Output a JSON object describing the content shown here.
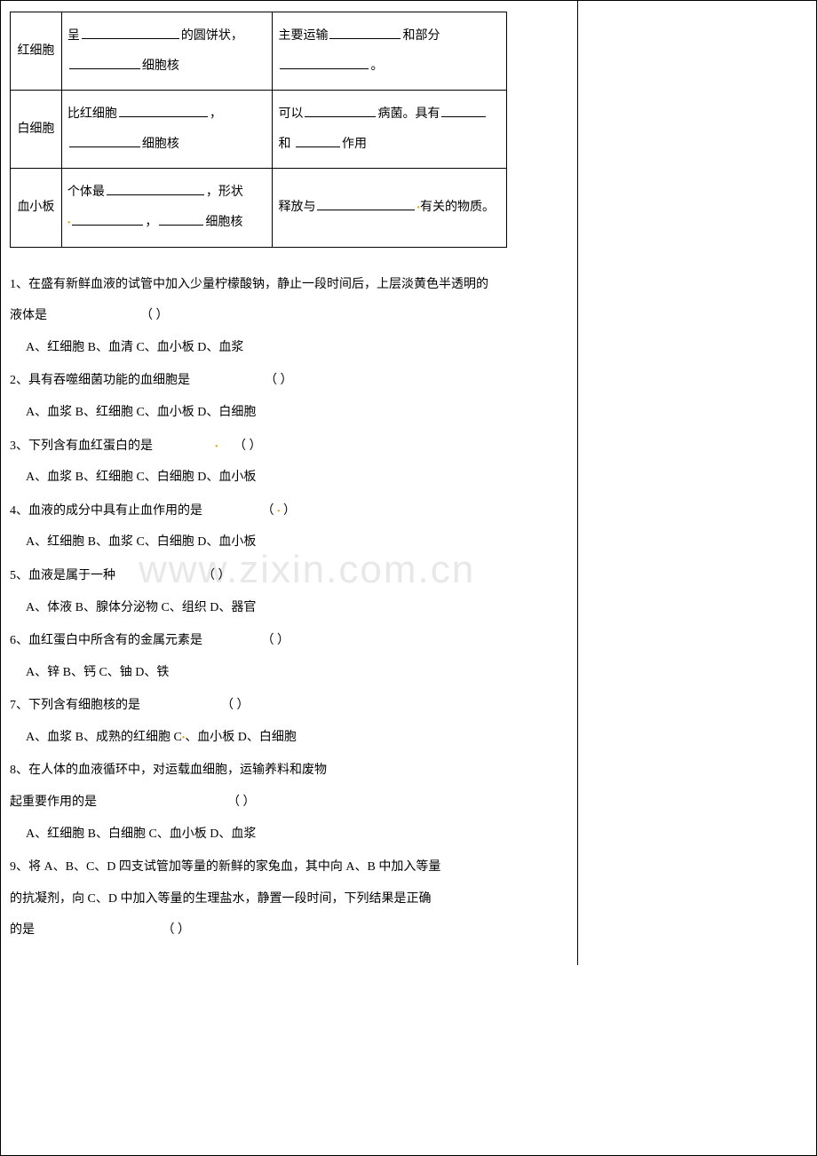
{
  "watermark": "www.zixin.com.cn",
  "table": {
    "rows": [
      {
        "label": "红细胞",
        "col2_parts": [
          "呈",
          "的圆饼状，",
          "细胞核"
        ],
        "col3_parts": [
          "主要运输",
          "和部分",
          "。"
        ]
      },
      {
        "label": "白细胞",
        "col2_parts": [
          "比红细胞",
          "，",
          "细胞核"
        ],
        "col3_parts": [
          "可以",
          "病菌。具有",
          "和 ",
          "作用"
        ]
      },
      {
        "label": "血小板",
        "col2_parts": [
          "个体最",
          "，形状",
          "，",
          "细胞核"
        ],
        "col3_parts": [
          "释放与",
          "有关的物质。"
        ]
      }
    ]
  },
  "questions": [
    {
      "num": "1",
      "stem1": "、在盛有新鲜血液的试管中加入少量柠檬酸钠，静止一段时间后，上层淡黄色半透明的",
      "stem2": "液体是",
      "paren_pad": "                              ",
      "opts": "A、红细胞    B、血清    C、血小板    D、血浆"
    },
    {
      "num": "2",
      "stem1": "、具有吞噬细菌功能的血细胞是",
      "paren_pad": "                        ",
      "opts": "A、血浆    B、红细胞    C、血小板    D、白细胞"
    },
    {
      "num": "3",
      "stem1": "、下列含有血红蛋白的是",
      "paren_pad": "                      ",
      "opts": "A、血浆    B、红细胞    C、白细胞    D、血小板"
    },
    {
      "num": "4",
      "stem1": "、血液的成分中具有止血作用的是",
      "paren_pad": "                   ",
      "opts": "A、红细胞    B、血浆    C、白细胞    D、血小板"
    },
    {
      "num": "5",
      "stem1": "、血液是属于一种",
      "paren_pad": "                            ",
      "opts": "A、体液    B、腺体分泌物   C、组织    D、器官"
    },
    {
      "num": "6",
      "stem1": "、血红蛋白中所含有的金属元素是",
      "paren_pad": "                   ",
      "opts": "A、锌     B、钙     C、铀        D、铁"
    },
    {
      "num": "7",
      "stem1": "、下列含有细胞核的是",
      "paren_pad": "                          ",
      "opts": "A、血浆   B、成熟的红细胞   C、血小板   D、白细胞"
    },
    {
      "num": "8",
      "stem1": "、在人体的血液循环中，对运载血细胞，运输养料和废物",
      "stem2": "起重要作用的是",
      "paren_pad": "                                          ",
      "opts": "A、红细胞   B、白细胞    C、血小板    D、血浆"
    },
    {
      "num": "9",
      "stem1": "、将 A、B、C、D 四支试管加等量的新鲜的家兔血，其中向 A、B 中加入等量",
      "stem2": "的抗凝剂，向 C、D 中加入等量的生理盐水，静置一段时间，下列结果是正确",
      "stem3": "的是",
      "paren_pad": "                                         "
    }
  ]
}
